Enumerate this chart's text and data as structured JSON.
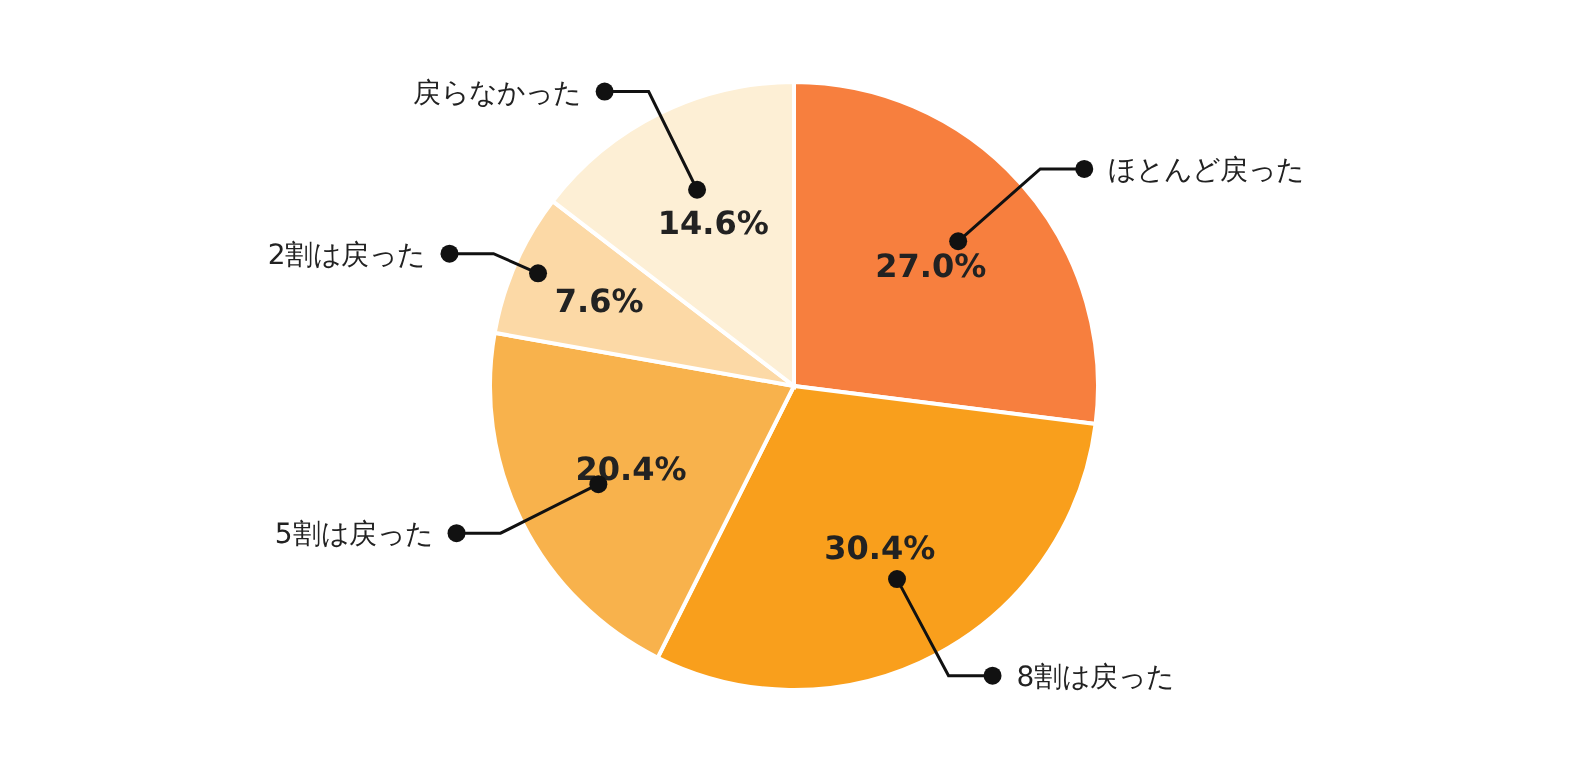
{
  "chart_data": {
    "type": "pie",
    "categories": [
      "ほとんど戻った",
      "8割は戻った",
      "5割は戻った",
      "2割は戻った",
      "戻らなかった"
    ],
    "values": [
      27.0,
      30.4,
      20.4,
      7.6,
      14.6
    ],
    "value_labels": [
      "27.0%",
      "30.4%",
      "20.4%",
      "7.6%",
      "14.6%"
    ],
    "colors": [
      "#f77f3e",
      "#f99f1c",
      "#f8b24c",
      "#fcd9a6",
      "#fdefd5"
    ]
  }
}
